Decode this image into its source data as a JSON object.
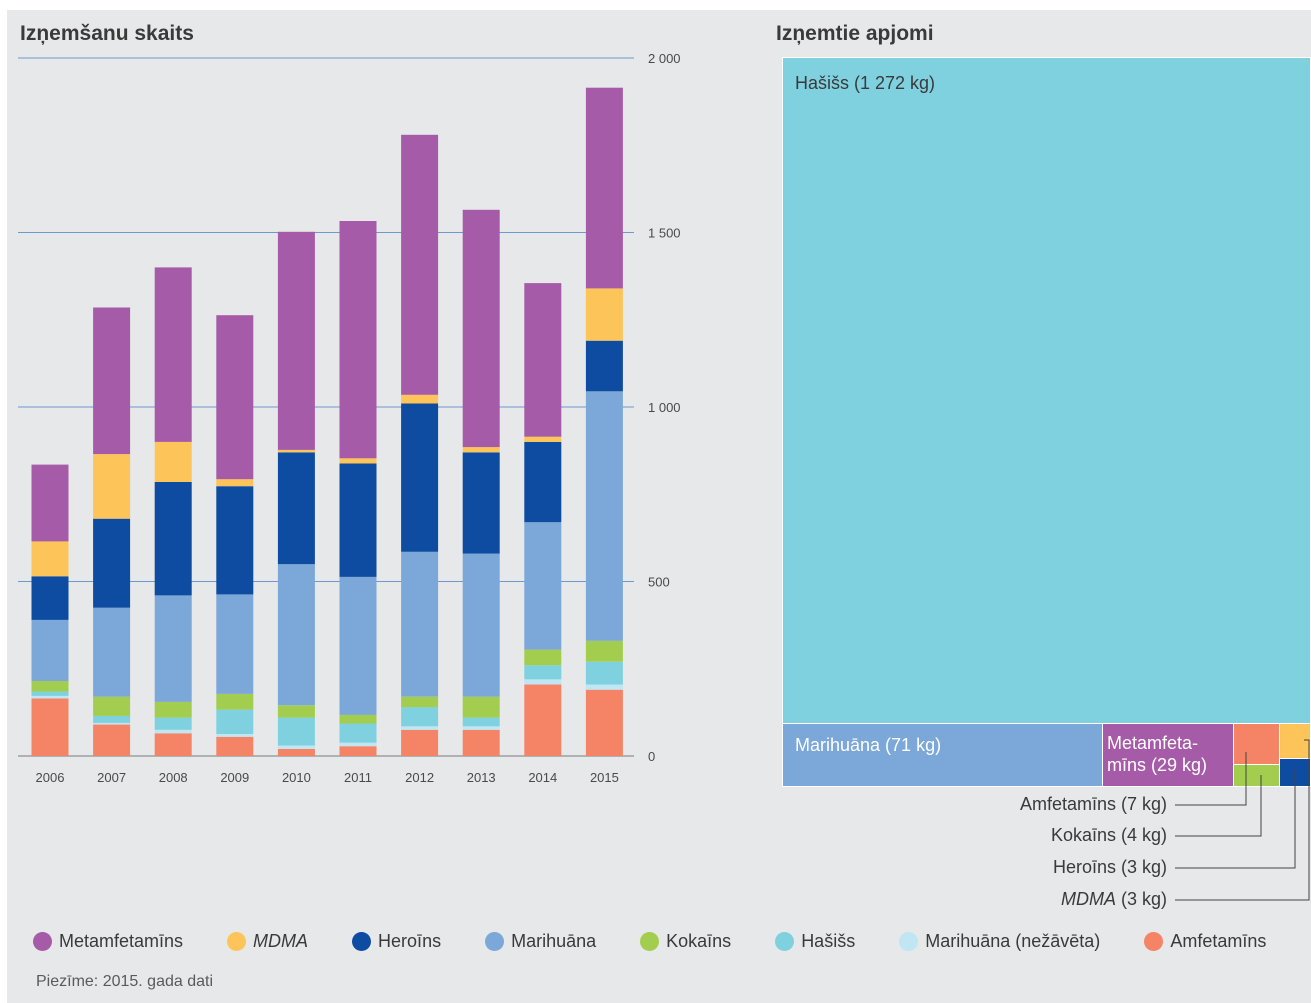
{
  "left_title": "Izņemšanu skaits",
  "right_title": "Izņemtie apjomi",
  "note": "Piezīme: 2015. gada dati",
  "colors": {
    "Metamfetamīns": "#a65ba8",
    "MDMA": "#fdc45a",
    "Heroīns": "#0d4ca0",
    "Marihuāna": "#7ba7d9",
    "Kokaīns": "#a3cd4e",
    "Hašišs": "#7fd1e0",
    "Marihuāna (nežāvēta)": "#bfe6f2",
    "Amfetamīns": "#f58466"
  },
  "legend": [
    {
      "label": "Metamfetamīns",
      "series": "Metamfetamīns",
      "italic": false
    },
    {
      "label": "MDMA",
      "series": "MDMA",
      "italic": true
    },
    {
      "label": "Heroīns",
      "series": "Heroīns",
      "italic": false
    },
    {
      "label": "Marihuāna",
      "series": "Marihuāna",
      "italic": false
    },
    {
      "label": "Kokaīns",
      "series": "Kokaīns",
      "italic": false
    },
    {
      "label": "Hašišs",
      "series": "Hašišs",
      "italic": false
    },
    {
      "label": "Marihuāna (nežāvēta)",
      "series": "Marihuāna (nežāvēta)",
      "italic": false
    },
    {
      "label": "Amfetamīns",
      "series": "Amfetamīns",
      "italic": false
    }
  ],
  "treemap_labels": {
    "hasiss": "Hašišs (1 272 kg)",
    "marihuana": "Marihuāna (71 kg)",
    "metamfetamins": "Metamfeta-\nmīns (29 kg)",
    "amfetamins": "Amfetamīns (7 kg)",
    "kokains": "Kokaīns (4 kg)",
    "heroins": "Heroīns (3 kg)",
    "mdma_name": "MDMA",
    "mdma_rest": " (3 kg)"
  },
  "chart_data": [
    {
      "type": "bar",
      "stacked": true,
      "title": "Izņemšanu skaits",
      "categories": [
        "2006",
        "2007",
        "2008",
        "2009",
        "2010",
        "2011",
        "2012",
        "2013",
        "2014",
        "2015"
      ],
      "yticks": [
        "0",
        "500",
        "1 000",
        "1 500",
        "2 000"
      ],
      "ytick_values": [
        0,
        500,
        1000,
        1500,
        2000
      ],
      "ylim": [
        0,
        2000
      ],
      "y_axis_side": "right",
      "grid": true,
      "series": [
        {
          "name": "Amfetamīns",
          "values": [
            165,
            90,
            65,
            55,
            20,
            28,
            75,
            75,
            205,
            190
          ]
        },
        {
          "name": "Marihuāna (nežāvēta)",
          "values": [
            7,
            5,
            10,
            8,
            10,
            10,
            10,
            10,
            15,
            15
          ]
        },
        {
          "name": "Hašišs",
          "values": [
            13,
            20,
            35,
            70,
            80,
            55,
            55,
            25,
            40,
            65
          ]
        },
        {
          "name": "Kokaīns",
          "values": [
            30,
            55,
            45,
            45,
            35,
            25,
            30,
            60,
            45,
            60
          ]
        },
        {
          "name": "Marihuāna",
          "values": [
            175,
            255,
            305,
            285,
            405,
            395,
            415,
            410,
            365,
            715
          ]
        },
        {
          "name": "Heroīns",
          "values": [
            125,
            255,
            325,
            310,
            320,
            325,
            425,
            290,
            230,
            145
          ]
        },
        {
          "name": "MDMA",
          "values": [
            100,
            185,
            115,
            20,
            7,
            15,
            25,
            15,
            15,
            150
          ]
        },
        {
          "name": "Metamfetamīns",
          "values": [
            220,
            420,
            500,
            470,
            625,
            680,
            745,
            680,
            440,
            575
          ]
        }
      ]
    },
    {
      "type": "treemap",
      "title": "Izņemtie apjomi",
      "unit": "kg",
      "items": [
        {
          "name": "Hašišs",
          "value": 1272
        },
        {
          "name": "Marihuāna",
          "value": 71
        },
        {
          "name": "Metamfetamīns",
          "value": 29
        },
        {
          "name": "Amfetamīns",
          "value": 7
        },
        {
          "name": "Kokaīns",
          "value": 4
        },
        {
          "name": "Heroīns",
          "value": 3
        },
        {
          "name": "MDMA",
          "value": 3
        }
      ]
    }
  ]
}
